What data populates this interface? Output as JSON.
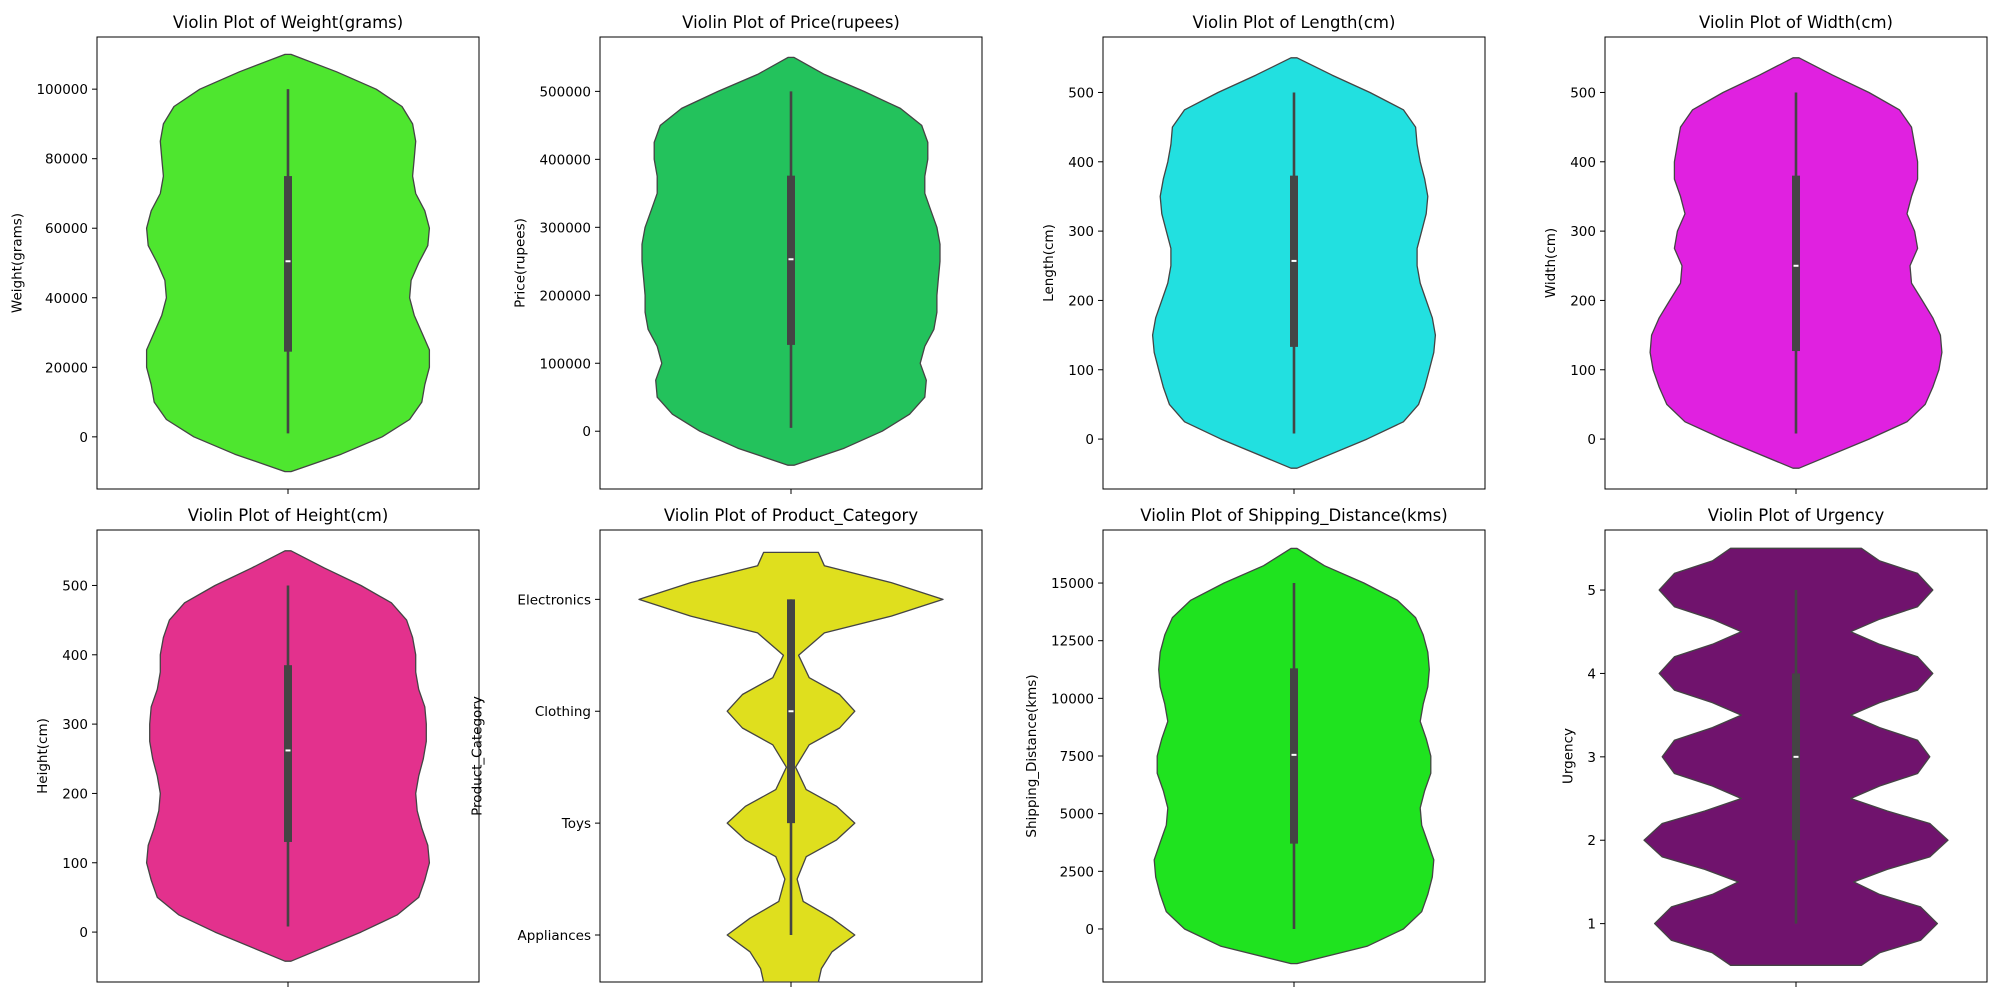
{
  "chart_data": [
    {
      "type": "violin",
      "title": "Violin Plot of Weight(grams)",
      "ylabel": "Weight(grams)",
      "xlabel": "",
      "color": "#4ee62f",
      "ylim": [
        -15000,
        115000
      ],
      "yticks": [
        0,
        20000,
        40000,
        60000,
        80000,
        100000
      ],
      "yticklabels": [
        "0",
        "20000",
        "40000",
        "60000",
        "80000",
        "100000"
      ],
      "box": {
        "min": 1000,
        "q1": 24500,
        "median": 50500,
        "q3": 75000,
        "max": 100000
      },
      "density": {
        "y": [
          -10000,
          -5000,
          0,
          5000,
          10000,
          15000,
          20000,
          25000,
          30000,
          35000,
          40000,
          45000,
          50000,
          55000,
          60000,
          65000,
          70000,
          75000,
          80000,
          85000,
          90000,
          95000,
          100000,
          105000,
          110000
        ],
        "w": [
          0.02,
          0.35,
          0.62,
          0.8,
          0.88,
          0.9,
          0.93,
          0.93,
          0.88,
          0.83,
          0.8,
          0.81,
          0.86,
          0.92,
          0.93,
          0.9,
          0.84,
          0.82,
          0.83,
          0.84,
          0.82,
          0.75,
          0.58,
          0.32,
          0.02
        ]
      }
    },
    {
      "type": "violin",
      "title": "Violin Plot of Price(rupees)",
      "ylabel": "Price(rupees)",
      "xlabel": "",
      "color": "#23c25c",
      "ylim": [
        -85000,
        580000
      ],
      "yticks": [
        0,
        100000,
        200000,
        300000,
        400000,
        500000
      ],
      "yticklabels": [
        "0",
        "100000",
        "200000",
        "300000",
        "400000",
        "500000"
      ],
      "box": {
        "min": 5000,
        "q1": 127000,
        "median": 253000,
        "q3": 376000,
        "max": 500000
      },
      "density": {
        "y": [
          -50000,
          -25000,
          0,
          25000,
          50000,
          75000,
          100000,
          125000,
          150000,
          175000,
          200000,
          225000,
          250000,
          275000,
          300000,
          325000,
          350000,
          375000,
          400000,
          425000,
          450000,
          475000,
          500000,
          525000,
          550000
        ],
        "w": [
          0.02,
          0.35,
          0.6,
          0.78,
          0.88,
          0.89,
          0.85,
          0.88,
          0.94,
          0.96,
          0.96,
          0.97,
          0.98,
          0.98,
          0.96,
          0.92,
          0.88,
          0.88,
          0.9,
          0.9,
          0.86,
          0.72,
          0.48,
          0.22,
          0.02
        ]
      }
    },
    {
      "type": "violin",
      "title": "Violin Plot of Length(cm)",
      "ylabel": "Length(cm)",
      "xlabel": "",
      "color": "#22e0e0",
      "ylim": [
        -72,
        580
      ],
      "yticks": [
        0,
        100,
        200,
        300,
        400,
        500
      ],
      "yticklabels": [
        "0",
        "100",
        "200",
        "300",
        "400",
        "500"
      ],
      "box": {
        "min": 8,
        "q1": 133,
        "median": 257,
        "q3": 380,
        "max": 500
      },
      "density": {
        "y": [
          -42,
          0,
          25,
          50,
          75,
          100,
          125,
          150,
          175,
          200,
          225,
          250,
          275,
          300,
          325,
          350,
          375,
          400,
          425,
          450,
          475,
          500,
          525,
          550
        ],
        "w": [
          0.02,
          0.48,
          0.72,
          0.82,
          0.86,
          0.89,
          0.92,
          0.93,
          0.91,
          0.87,
          0.83,
          0.81,
          0.81,
          0.84,
          0.87,
          0.88,
          0.86,
          0.83,
          0.81,
          0.8,
          0.72,
          0.5,
          0.25,
          0.02
        ]
      }
    },
    {
      "type": "violin",
      "title": "Violin Plot of Width(cm)",
      "ylabel": "Width(cm)",
      "xlabel": "",
      "color": "#e021e0",
      "ylim": [
        -72,
        580
      ],
      "yticks": [
        0,
        100,
        200,
        300,
        400,
        500
      ],
      "yticklabels": [
        "0",
        "100",
        "200",
        "300",
        "400",
        "500"
      ],
      "box": {
        "min": 8,
        "q1": 127,
        "median": 250,
        "q3": 380,
        "max": 500
      },
      "density": {
        "y": [
          -42,
          0,
          25,
          50,
          75,
          100,
          125,
          150,
          175,
          200,
          225,
          250,
          275,
          300,
          325,
          350,
          375,
          400,
          425,
          450,
          475,
          500,
          525,
          550
        ],
        "w": [
          0.02,
          0.48,
          0.73,
          0.85,
          0.9,
          0.94,
          0.96,
          0.95,
          0.9,
          0.83,
          0.76,
          0.75,
          0.8,
          0.78,
          0.73,
          0.76,
          0.8,
          0.8,
          0.78,
          0.76,
          0.68,
          0.48,
          0.24,
          0.02
        ]
      }
    },
    {
      "type": "violin",
      "title": "Violin Plot of Height(cm)",
      "ylabel": "Height(cm)",
      "xlabel": "",
      "color": "#e3318d",
      "ylim": [
        -72,
        580
      ],
      "yticks": [
        0,
        100,
        200,
        300,
        400,
        500
      ],
      "yticklabels": [
        "0",
        "100",
        "200",
        "300",
        "400",
        "500"
      ],
      "box": {
        "min": 8,
        "q1": 130,
        "median": 262,
        "q3": 385,
        "max": 500
      },
      "density": {
        "y": [
          -42,
          0,
          25,
          50,
          75,
          100,
          125,
          150,
          175,
          200,
          225,
          250,
          275,
          300,
          325,
          350,
          375,
          400,
          425,
          450,
          475,
          500,
          525,
          550
        ],
        "w": [
          0.02,
          0.48,
          0.72,
          0.86,
          0.9,
          0.93,
          0.92,
          0.88,
          0.85,
          0.84,
          0.86,
          0.89,
          0.91,
          0.91,
          0.9,
          0.86,
          0.84,
          0.84,
          0.82,
          0.78,
          0.68,
          0.48,
          0.24,
          0.02
        ]
      }
    },
    {
      "type": "violin",
      "title": "Violin Plot of Product_Category",
      "ylabel": "Product_Category",
      "xlabel": "",
      "color": "#dfdf1e",
      "ylim": [
        -0.42,
        3.62
      ],
      "yticks": [
        0,
        1,
        2,
        3
      ],
      "yticklabels": [
        "Appliances",
        "Toys",
        "Clothing",
        "Electronics"
      ],
      "categorical_y": true,
      "box": {
        "min": 0,
        "q1": 1,
        "median": 2,
        "q3": 3,
        "max": 3
      },
      "density": {
        "y": [
          -0.42,
          -0.3,
          -0.15,
          0,
          0.15,
          0.3,
          0.5,
          0.7,
          0.85,
          1,
          1.15,
          1.3,
          1.5,
          1.7,
          1.85,
          2,
          2.15,
          2.3,
          2.5,
          2.7,
          2.85,
          3,
          3.15,
          3.3,
          3.42
        ],
        "w": [
          0.18,
          0.2,
          0.27,
          0.42,
          0.27,
          0.08,
          0.04,
          0.1,
          0.3,
          0.42,
          0.3,
          0.1,
          0.03,
          0.12,
          0.32,
          0.42,
          0.32,
          0.12,
          0.05,
          0.22,
          0.66,
          1.0,
          0.66,
          0.22,
          0.18
        ]
      }
    },
    {
      "type": "violin",
      "title": "Violin Plot of Shipping_Distance(kms)",
      "ylabel": "Shipping_Distance(kms)",
      "xlabel": "",
      "color": "#1fe31f",
      "ylim": [
        -2300,
        17300
      ],
      "yticks": [
        0,
        2500,
        5000,
        7500,
        10000,
        12500,
        15000
      ],
      "yticklabels": [
        "0",
        "2500",
        "5000",
        "7500",
        "10000",
        "12500",
        "15000"
      ],
      "box": {
        "min": 0,
        "q1": 3700,
        "median": 7550,
        "q3": 11300,
        "max": 15000
      },
      "density": {
        "y": [
          -1500,
          -750,
          0,
          750,
          1500,
          2250,
          3000,
          3750,
          4500,
          5250,
          6000,
          6750,
          7500,
          8250,
          9000,
          9750,
          10500,
          11250,
          12000,
          12750,
          13500,
          14250,
          15000,
          15750,
          16500
        ],
        "w": [
          0.02,
          0.48,
          0.72,
          0.84,
          0.88,
          0.91,
          0.92,
          0.88,
          0.84,
          0.83,
          0.86,
          0.9,
          0.9,
          0.87,
          0.83,
          0.85,
          0.88,
          0.89,
          0.88,
          0.85,
          0.8,
          0.68,
          0.46,
          0.2,
          0.02
        ]
      }
    },
    {
      "type": "violin",
      "title": "Violin Plot of Urgency",
      "ylabel": "Urgency",
      "xlabel": "",
      "color": "#70136d",
      "ylim": [
        0.3,
        5.72
      ],
      "yticks": [
        1,
        2,
        3,
        4,
        5
      ],
      "yticklabels": [
        "1",
        "2",
        "3",
        "4",
        "5"
      ],
      "box": {
        "min": 1,
        "q1": 2,
        "median": 3,
        "q3": 4,
        "max": 5
      },
      "density": {
        "y": [
          0.5,
          0.65,
          0.8,
          1,
          1.2,
          1.35,
          1.5,
          1.65,
          1.8,
          2,
          2.2,
          2.35,
          2.5,
          2.65,
          2.8,
          3,
          3.2,
          3.35,
          3.5,
          3.65,
          3.8,
          4,
          4.2,
          4.35,
          4.5,
          4.65,
          4.8,
          5,
          5.2,
          5.35,
          5.5
        ],
        "w": [
          0.43,
          0.55,
          0.82,
          0.93,
          0.82,
          0.55,
          0.38,
          0.6,
          0.88,
          1.0,
          0.88,
          0.6,
          0.36,
          0.55,
          0.8,
          0.88,
          0.8,
          0.55,
          0.36,
          0.55,
          0.8,
          0.9,
          0.8,
          0.55,
          0.36,
          0.55,
          0.8,
          0.9,
          0.8,
          0.55,
          0.43
        ]
      }
    }
  ]
}
